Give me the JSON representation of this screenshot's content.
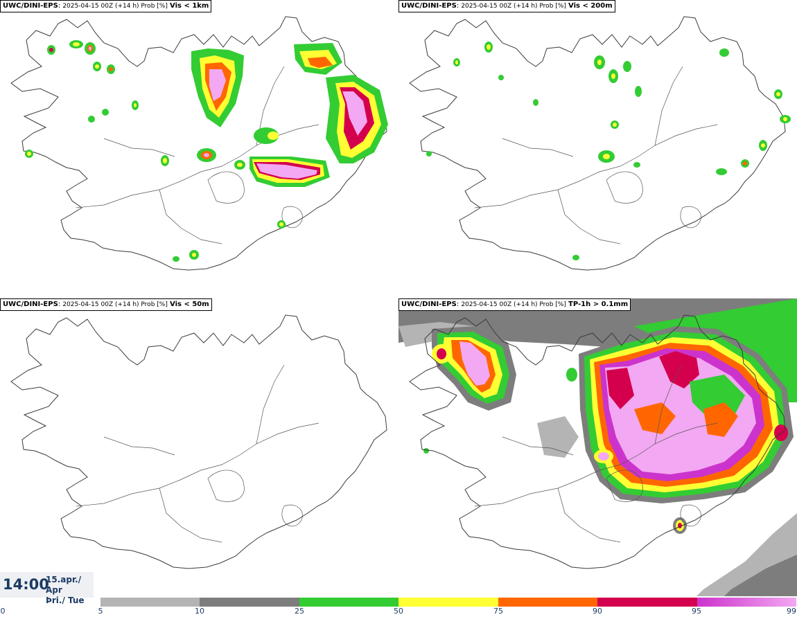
{
  "panels": [
    {
      "source": "UWC/DINI-EPS",
      "meta": "2025-04-15 00Z (+14 h) Prob [%]",
      "variable": "Vis < 1km"
    },
    {
      "source": "UWC/DINI-EPS",
      "meta": "2025-04-15 00Z (+14 h) Prob [%]",
      "variable": "Vis < 200m"
    },
    {
      "source": "UWC/DINI-EPS",
      "meta": "2025-04-15 00Z (+14 h) Prob [%]",
      "variable": "Vis < 50m"
    },
    {
      "source": "UWC/DINI-EPS",
      "meta": "2025-04-15 00Z (+14 h) Prob [%]",
      "variable": "TP-1h > 0.1mm"
    }
  ],
  "time": {
    "main": "14:00",
    "date": "15.apr./ Apr",
    "day": "Þri./ Tue"
  },
  "legend": {
    "ticks": [
      "0",
      "5",
      "10",
      "25",
      "50",
      "75",
      "90",
      "95",
      "99"
    ],
    "colors": {
      "5_10": "#b4b4b4",
      "10_25": "#7d7d7d",
      "25_50": "#33cc33",
      "50_75": "#ffff33",
      "75_90": "#ff6600",
      "90_95": "#d4004d",
      "95_99_start": "#cc33cc",
      "95_99_end": "#f2a8f2"
    }
  }
}
